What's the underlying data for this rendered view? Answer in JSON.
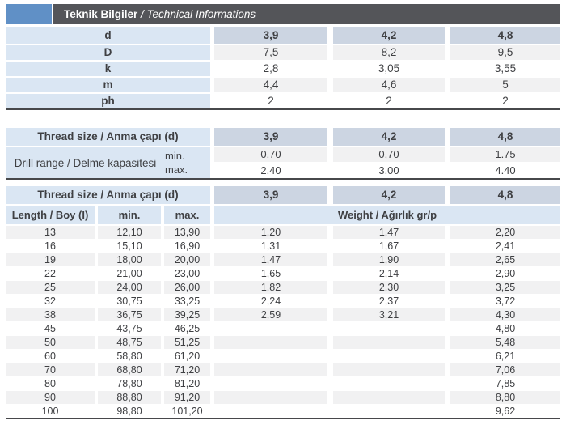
{
  "header": {
    "title_tr": "Teknik Bilgiler",
    "separator": " / ",
    "title_en": "Technical Informations"
  },
  "colors": {
    "accent_blue": "#6090c6",
    "title_bar_gray": "#545559",
    "label_blue": "#dae6f3",
    "header_cell_blue_gray": "#ccd5e2",
    "row_stripe_gray": "#f1f1f2",
    "text": "#3f4043",
    "table_border": "#47484b"
  },
  "table1": {
    "rows": [
      {
        "label": "d",
        "values": [
          "3,9",
          "4,2",
          "4,8"
        ]
      },
      {
        "label": "D",
        "values": [
          "7,5",
          "8,2",
          "9,5"
        ]
      },
      {
        "label": "k",
        "values": [
          "2,8",
          "3,05",
          "3,55"
        ]
      },
      {
        "label": "m",
        "values": [
          "4,4",
          "4,6",
          "5"
        ]
      },
      {
        "label": "ph",
        "values": [
          "2",
          "2",
          "2"
        ]
      }
    ]
  },
  "table2": {
    "header_label": "Thread size / Anma çapı (d)",
    "header_values": [
      "3,9",
      "4,2",
      "4,8"
    ],
    "row_label": "Drill range / Delme kapasitesi",
    "sub_rows": [
      {
        "label": "min.",
        "values": [
          "0.70",
          "0,70",
          "1.75"
        ]
      },
      {
        "label": "max.",
        "values": [
          "2.40",
          "3.00",
          "4.40"
        ]
      }
    ]
  },
  "table3": {
    "header_label": "Thread size / Anma çapı (d)",
    "header_values": [
      "3,9",
      "4,2",
      "4,8"
    ],
    "col_headers": {
      "length": "Length / Boy (I)",
      "min": "min.",
      "max": "max.",
      "weight": "Weight / Ağırlık gr/p"
    },
    "rows": [
      {
        "length": "13",
        "min": "12,10",
        "max": "13,90",
        "weights": [
          "1,20",
          "1,47",
          "2,20"
        ]
      },
      {
        "length": "16",
        "min": "15,10",
        "max": "16,90",
        "weights": [
          "1,31",
          "1,67",
          "2,41"
        ]
      },
      {
        "length": "19",
        "min": "18,00",
        "max": "20,00",
        "weights": [
          "1,47",
          "1,90",
          "2,65"
        ]
      },
      {
        "length": "22",
        "min": "21,00",
        "max": "23,00",
        "weights": [
          "1,65",
          "2,14",
          "2,90"
        ]
      },
      {
        "length": "25",
        "min": "24,00",
        "max": "26,00",
        "weights": [
          "1,82",
          "2,30",
          "3,25"
        ]
      },
      {
        "length": "32",
        "min": "30,75",
        "max": "33,25",
        "weights": [
          "2,24",
          "2,37",
          "3,72"
        ]
      },
      {
        "length": "38",
        "min": "36,75",
        "max": "39,25",
        "weights": [
          "2,59",
          "3,21",
          "4,30"
        ]
      },
      {
        "length": "45",
        "min": "43,75",
        "max": "46,25",
        "weights": [
          "",
          "",
          "4,80"
        ]
      },
      {
        "length": "50",
        "min": "48,75",
        "max": "51,25",
        "weights": [
          "",
          "",
          "5,48"
        ]
      },
      {
        "length": "60",
        "min": "58,80",
        "max": "61,20",
        "weights": [
          "",
          "",
          "6,21"
        ]
      },
      {
        "length": "70",
        "min": "68,80",
        "max": "71,20",
        "weights": [
          "",
          "",
          "7,06"
        ]
      },
      {
        "length": "80",
        "min": "78,80",
        "max": "81,20",
        "weights": [
          "",
          "",
          "7,85"
        ]
      },
      {
        "length": "90",
        "min": "88,80",
        "max": "91,20",
        "weights": [
          "",
          "",
          "8,80"
        ]
      },
      {
        "length": "100",
        "min": "98,80",
        "max": "101,20",
        "weights": [
          "",
          "",
          "9,62"
        ]
      }
    ]
  }
}
